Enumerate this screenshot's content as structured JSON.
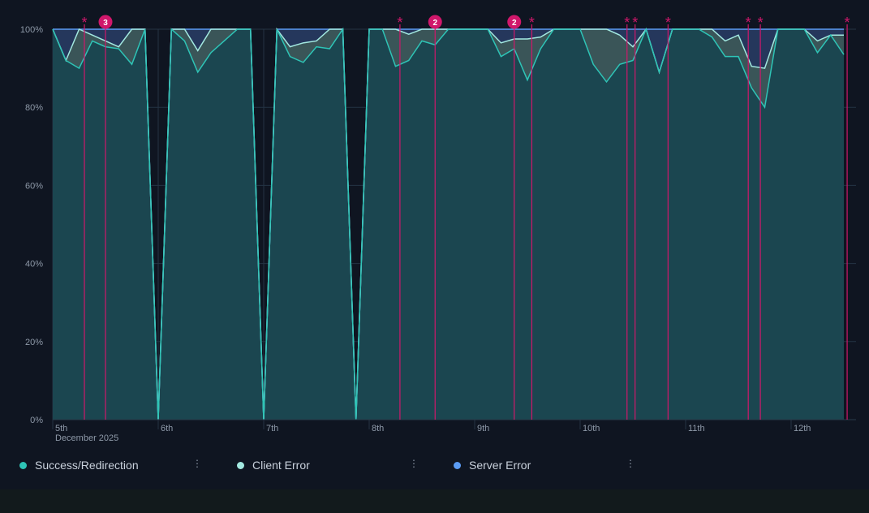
{
  "chart_data": {
    "type": "area",
    "stacked": true,
    "normalized": true,
    "y_ticks": [
      "0%",
      "20%",
      "40%",
      "60%",
      "80%",
      "100%"
    ],
    "ylim": [
      0,
      100
    ],
    "x_ticks": [
      "5th",
      "6th",
      "7th",
      "8th",
      "9th",
      "10th",
      "11th",
      "12th"
    ],
    "x_sublabel": "December 2025",
    "grid": true,
    "legend_position": "bottom-left",
    "x": [
      "2025-12-05T00:00",
      "2025-12-05T03:00",
      "2025-12-05T06:00",
      "2025-12-05T09:00",
      "2025-12-05T12:00",
      "2025-12-05T15:00",
      "2025-12-05T18:00",
      "2025-12-05T21:00",
      "2025-12-06T00:00",
      "2025-12-06T03:00",
      "2025-12-06T06:00",
      "2025-12-06T09:00",
      "2025-12-06T12:00",
      "2025-12-06T15:00",
      "2025-12-06T18:00",
      "2025-12-06T21:00",
      "2025-12-07T00:00",
      "2025-12-07T03:00",
      "2025-12-07T06:00",
      "2025-12-07T09:00",
      "2025-12-07T12:00",
      "2025-12-07T15:00",
      "2025-12-07T18:00",
      "2025-12-07T21:00",
      "2025-12-08T00:00",
      "2025-12-08T03:00",
      "2025-12-08T06:00",
      "2025-12-08T09:00",
      "2025-12-08T12:00",
      "2025-12-08T15:00",
      "2025-12-08T18:00",
      "2025-12-08T21:00",
      "2025-12-09T00:00",
      "2025-12-09T03:00",
      "2025-12-09T06:00",
      "2025-12-09T09:00",
      "2025-12-09T12:00",
      "2025-12-09T15:00",
      "2025-12-09T18:00",
      "2025-12-09T21:00",
      "2025-12-10T00:00",
      "2025-12-10T03:00",
      "2025-12-10T06:00",
      "2025-12-10T09:00",
      "2025-12-10T12:00",
      "2025-12-10T15:00",
      "2025-12-10T18:00",
      "2025-12-10T21:00",
      "2025-12-11T00:00",
      "2025-12-11T03:00",
      "2025-12-11T06:00",
      "2025-12-11T09:00",
      "2025-12-11T12:00",
      "2025-12-11T15:00",
      "2025-12-11T18:00",
      "2025-12-11T21:00",
      "2025-12-12T00:00",
      "2025-12-12T03:00",
      "2025-12-12T06:00",
      "2025-12-12T09:00",
      "2025-12-12T12:00"
    ],
    "series": [
      {
        "name": "Success/Redirection",
        "color": "#2ec4b6",
        "values": [
          100,
          92,
          90,
          97,
          95.5,
          95,
          91,
          100,
          0,
          100,
          97,
          89,
          94,
          97,
          100,
          100,
          0,
          100,
          93,
          91.5,
          95.5,
          95,
          100,
          0,
          100,
          100,
          90.5,
          92,
          97,
          96,
          100,
          100,
          100,
          100,
          93,
          95,
          87,
          95,
          100,
          100,
          100,
          91,
          86.5,
          91,
          92,
          100,
          89,
          100,
          100,
          100,
          98,
          93,
          93,
          85,
          80,
          100,
          100,
          100,
          94,
          98.5,
          93.5
        ]
      },
      {
        "name": "Client Error",
        "color": "#a3e9e1",
        "values": [
          0,
          0,
          10,
          1.5,
          1.5,
          0.5,
          9,
          0,
          0,
          0,
          3,
          5.5,
          6,
          3,
          0,
          0,
          0,
          0,
          2.5,
          5,
          1.5,
          5,
          0,
          0,
          0,
          0,
          9.5,
          6.7,
          3,
          4,
          0,
          0,
          0,
          0,
          3.5,
          2.5,
          10.5,
          3,
          0,
          0,
          0,
          9,
          13.5,
          7.5,
          3.5,
          0,
          0,
          0,
          0,
          0,
          2,
          4,
          5.5,
          5.5,
          10,
          0,
          0,
          0,
          3,
          0,
          5
        ]
      },
      {
        "name": "Server Error",
        "color": "#5b9cf5",
        "values": [
          0,
          8,
          0,
          1.5,
          3,
          4.5,
          0,
          0,
          0,
          0,
          0,
          5.5,
          0,
          0,
          0,
          0,
          0,
          0,
          4.5,
          3.5,
          3,
          0,
          0,
          0,
          0,
          0,
          0,
          1.3,
          0,
          0,
          0,
          0,
          0,
          0,
          3.5,
          2.5,
          2.5,
          2,
          0,
          0,
          0,
          0,
          0,
          1.5,
          4.5,
          0,
          11,
          0,
          0,
          0,
          0,
          3,
          1.5,
          9.5,
          10,
          0,
          0,
          0,
          3,
          1.5,
          1.5
        ]
      }
    ],
    "annotations": [
      {
        "time": "2025-12-05T07:12",
        "marker": "*"
      },
      {
        "time": "2025-12-05T12:00",
        "marker": "3"
      },
      {
        "time": "2025-12-08T07:00",
        "marker": "*"
      },
      {
        "time": "2025-12-08T15:00",
        "marker": "2"
      },
      {
        "time": "2025-12-09T09:00",
        "marker": "2"
      },
      {
        "time": "2025-12-09T13:00",
        "marker": "*"
      },
      {
        "time": "2025-12-10T10:40",
        "marker": "*"
      },
      {
        "time": "2025-12-10T12:30",
        "marker": "*"
      },
      {
        "time": "2025-12-10T20:00",
        "marker": "*"
      },
      {
        "time": "2025-12-11T14:15",
        "marker": "*"
      },
      {
        "time": "2025-12-11T17:00",
        "marker": "*"
      },
      {
        "time": "2025-12-12T12:45",
        "marker": "*"
      }
    ],
    "annotation_color": "#d0176b"
  },
  "legend": {
    "items": [
      {
        "label": "Success/Redirection",
        "color": "#2ec4b6",
        "menu_icon": "kebab-menu-icon"
      },
      {
        "label": "Client Error",
        "color": "#a3e9e1",
        "menu_icon": "kebab-menu-icon"
      },
      {
        "label": "Server Error",
        "color": "#5b9cf5",
        "menu_icon": "kebab-menu-icon"
      }
    ]
  }
}
